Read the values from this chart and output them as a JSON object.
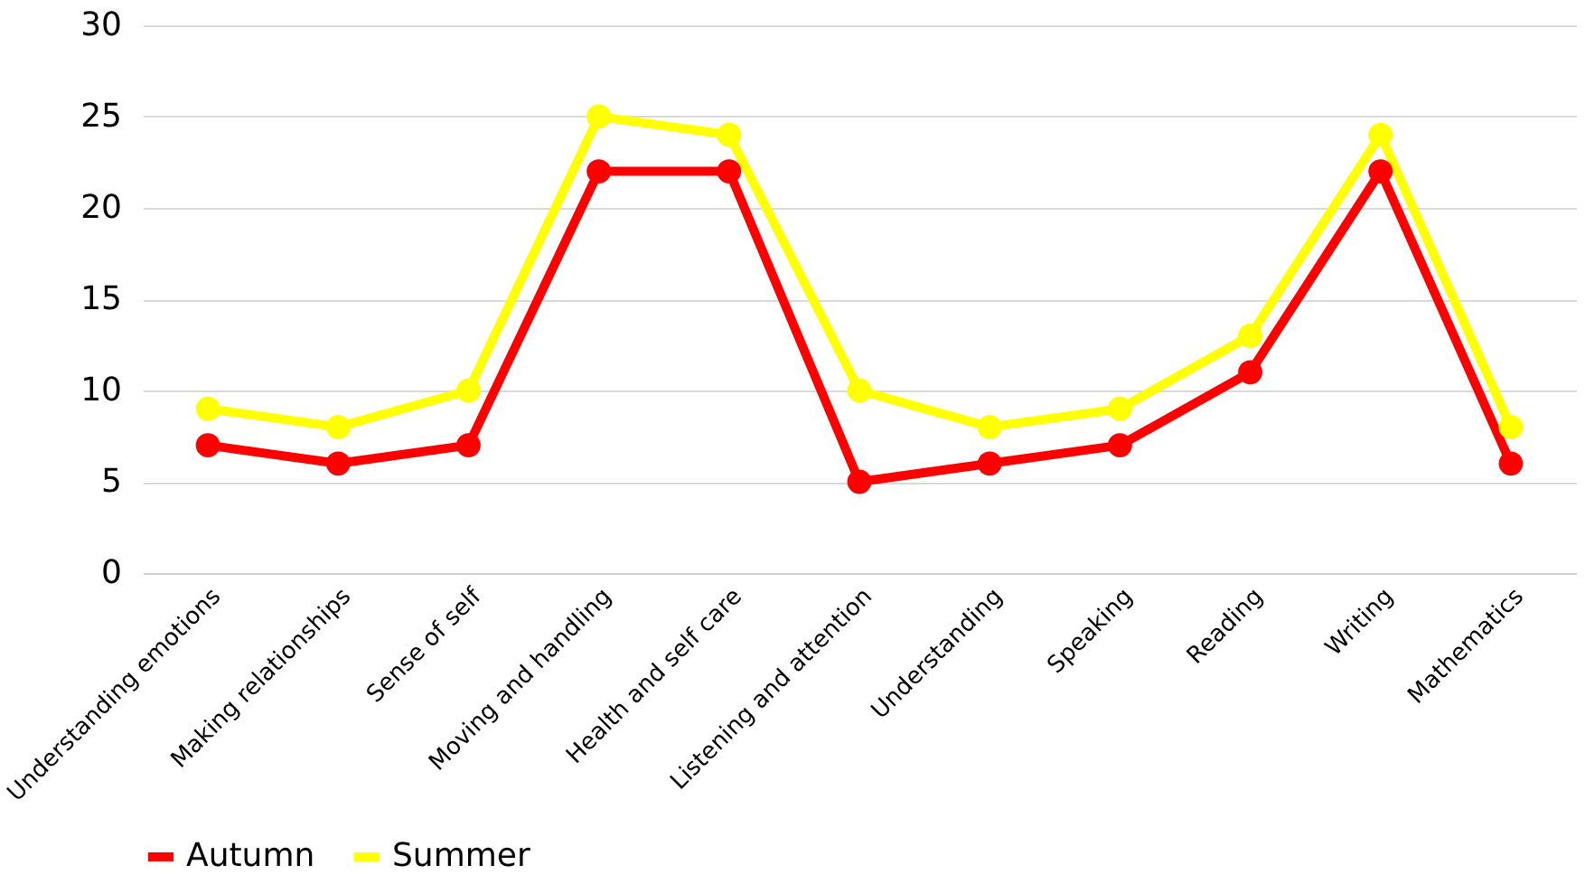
{
  "chart_data": {
    "type": "line",
    "categories": [
      "Understanding emotions",
      "Making relationships",
      "Sense of self",
      "Moving and handling",
      "Health and self care",
      "Listening and attention",
      "Understanding",
      "Speaking",
      "Reading",
      "Writing",
      "Mathematics"
    ],
    "series": [
      {
        "name": "Autumn",
        "color": "#ff0000",
        "values": [
          7,
          6,
          7,
          22,
          22,
          5,
          6,
          7,
          11,
          22,
          6
        ]
      },
      {
        "name": "Summer",
        "color": "#ffff00",
        "values": [
          9,
          8,
          10,
          25,
          24,
          10,
          8,
          9,
          13,
          24,
          8
        ]
      }
    ],
    "ylim": [
      0,
      30
    ],
    "yticks": [
      0,
      5,
      10,
      15,
      20,
      25,
      30
    ],
    "grid": "y",
    "legend": "bottom",
    "marker": "circle",
    "line_style": "solid"
  }
}
